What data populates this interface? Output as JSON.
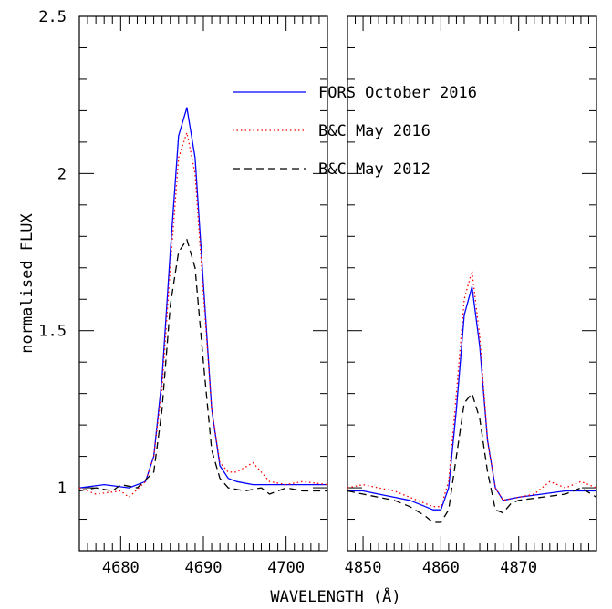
{
  "chart_data": {
    "type": "line",
    "xlabel": "WAVELENGTH (Å)",
    "ylabel": "normalised FLUX",
    "ylim": [
      0.8,
      2.5
    ],
    "y_ticks": [
      "1",
      "1.5",
      "2",
      "2.5"
    ],
    "grid": false,
    "legend_position": "top-right",
    "panels": [
      {
        "xlim": [
          4675,
          4705
        ],
        "x_ticks": [
          "4680",
          "4690",
          "4700"
        ],
        "series": [
          {
            "name": "FORS October 2016",
            "color": "#0000ff",
            "style": "solid",
            "x": [
              4675,
              4678,
              4681,
              4683,
              4684,
              4685,
              4686,
              4687,
              4688,
              4689,
              4690,
              4691,
              4692,
              4693,
              4694,
              4696,
              4698,
              4700,
              4702,
              4705
            ],
            "y": [
              1.0,
              1.01,
              1.0,
              1.02,
              1.1,
              1.35,
              1.75,
              2.12,
              2.21,
              2.05,
              1.65,
              1.25,
              1.07,
              1.03,
              1.02,
              1.01,
              1.01,
              1.01,
              1.01,
              1.01
            ]
          },
          {
            "name": "B&C May 2016",
            "color": "#ff0000",
            "style": "dotted",
            "x": [
              4675,
              4677,
              4680,
              4681,
              4683,
              4684,
              4685,
              4686,
              4687,
              4688,
              4689,
              4690,
              4691,
              4692,
              4693,
              4694,
              4696,
              4698,
              4700,
              4702,
              4705
            ],
            "y": [
              1.0,
              0.98,
              0.99,
              0.97,
              1.02,
              1.1,
              1.32,
              1.7,
              2.05,
              2.13,
              2.0,
              1.62,
              1.25,
              1.08,
              1.05,
              1.05,
              1.08,
              1.02,
              1.01,
              1.02,
              1.01
            ]
          },
          {
            "name": "B&C May 2012",
            "color": "#000000",
            "style": "dashed",
            "x": [
              4675,
              4677,
              4679,
              4680,
              4682,
              4684,
              4685,
              4686,
              4687,
              4688,
              4689,
              4690,
              4691,
              4692,
              4693,
              4695,
              4697,
              4698,
              4700,
              4702,
              4705
            ],
            "y": [
              0.99,
              1.0,
              0.99,
              1.01,
              1.0,
              1.05,
              1.25,
              1.58,
              1.75,
              1.79,
              1.7,
              1.4,
              1.12,
              1.03,
              1.0,
              0.99,
              1.0,
              0.98,
              1.0,
              0.99,
              0.99
            ]
          }
        ]
      },
      {
        "xlim": [
          4848,
          4880
        ],
        "x_ticks": [
          "4850",
          "4860",
          "4870"
        ],
        "series": [
          {
            "name": "FORS October 2016",
            "color": "#0000ff",
            "style": "solid",
            "x": [
              4848,
              4850,
              4852,
              4854,
              4856,
              4858,
              4859,
              4860,
              4861,
              4862,
              4863,
              4864,
              4865,
              4866,
              4867,
              4868,
              4870,
              4873,
              4876,
              4880
            ],
            "y": [
              0.99,
              0.99,
              0.98,
              0.97,
              0.96,
              0.94,
              0.93,
              0.93,
              1.0,
              1.25,
              1.55,
              1.64,
              1.45,
              1.15,
              1.0,
              0.96,
              0.97,
              0.98,
              0.99,
              0.99
            ]
          },
          {
            "name": "B&C May 2016",
            "color": "#ff0000",
            "style": "dotted",
            "x": [
              4848,
              4850,
              4852,
              4854,
              4856,
              4858,
              4859,
              4860,
              4861,
              4862,
              4863,
              4864,
              4865,
              4866,
              4867,
              4868,
              4870,
              4872,
              4874,
              4876,
              4878,
              4880
            ],
            "y": [
              1.0,
              1.01,
              1.0,
              0.99,
              0.97,
              0.95,
              0.94,
              0.94,
              1.02,
              1.3,
              1.6,
              1.69,
              1.48,
              1.15,
              1.0,
              0.96,
              0.97,
              0.98,
              1.02,
              1.0,
              1.02,
              1.0
            ]
          },
          {
            "name": "B&C May 2012",
            "color": "#000000",
            "style": "dashed",
            "x": [
              4848,
              4850,
              4852,
              4854,
              4856,
              4858,
              4859,
              4860,
              4861,
              4862,
              4863,
              4864,
              4865,
              4866,
              4867,
              4868,
              4869,
              4870,
              4873,
              4876,
              4878,
              4880
            ],
            "y": [
              0.99,
              0.98,
              0.97,
              0.96,
              0.94,
              0.91,
              0.89,
              0.89,
              0.93,
              1.1,
              1.27,
              1.3,
              1.22,
              1.05,
              0.93,
              0.92,
              0.95,
              0.96,
              0.97,
              0.98,
              1.0,
              0.97
            ]
          }
        ]
      }
    ]
  }
}
